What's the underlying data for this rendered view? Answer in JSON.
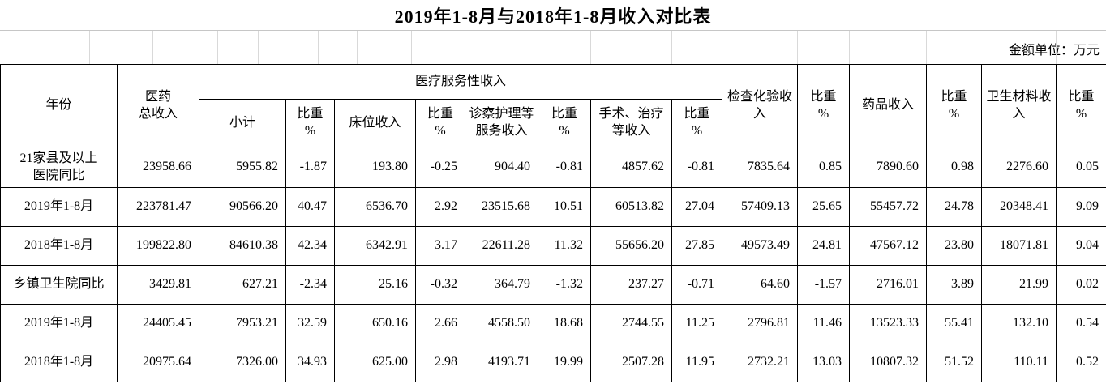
{
  "title": "2019年1-8月与2018年1-8月收入对比表",
  "unit_note": "金额单位：万元",
  "table": {
    "header": {
      "year": "年份",
      "total_medical_revenue": "医药\n总收入",
      "medical_service_group": "医疗服务性收入",
      "subtotal": "小计",
      "proportion_pct": "比重\n%",
      "bed_revenue": "床位收入",
      "exam_nursing_service_revenue": "诊察护理等\n服务收入",
      "surgery_treatment_revenue": "手术、治疗\n等收入",
      "inspection_lab_revenue": "检查化验收\n入",
      "drug_revenue": "药品收入",
      "sanitary_material_revenue": "卫生材料收\n入"
    },
    "rows": [
      {
        "label": "21家县及以上\n医院同比",
        "values": [
          "23958.66",
          "5955.82",
          "-1.87",
          "193.80",
          "-0.25",
          "904.40",
          "-0.81",
          "4857.62",
          "-0.81",
          "7835.64",
          "0.85",
          "7890.60",
          "0.98",
          "2276.60",
          "0.05"
        ]
      },
      {
        "label": "2019年1-8月",
        "values": [
          "223781.47",
          "90566.20",
          "40.47",
          "6536.70",
          "2.92",
          "23515.68",
          "10.51",
          "60513.82",
          "27.04",
          "57409.13",
          "25.65",
          "55457.72",
          "24.78",
          "20348.41",
          "9.09"
        ]
      },
      {
        "label": "2018年1-8月",
        "values": [
          "199822.80",
          "84610.38",
          "42.34",
          "6342.91",
          "3.17",
          "22611.28",
          "11.32",
          "55656.20",
          "27.85",
          "49573.49",
          "24.81",
          "47567.12",
          "23.80",
          "18071.81",
          "9.04"
        ]
      },
      {
        "label": "乡镇卫生院同比",
        "values": [
          "3429.81",
          "627.21",
          "-2.34",
          "25.16",
          "-0.32",
          "364.79",
          "-1.32",
          "237.27",
          "-0.71",
          "64.60",
          "-1.57",
          "2716.01",
          "3.89",
          "21.99",
          "0.02"
        ]
      },
      {
        "label": "2019年1-8月",
        "values": [
          "24405.45",
          "7953.21",
          "32.59",
          "650.16",
          "2.66",
          "4558.50",
          "18.68",
          "2744.55",
          "11.25",
          "2796.81",
          "11.46",
          "13523.33",
          "55.41",
          "132.10",
          "0.54"
        ]
      },
      {
        "label": "2018年1-8月",
        "values": [
          "20975.64",
          "7326.00",
          "34.93",
          "625.00",
          "2.98",
          "4193.71",
          "19.99",
          "2507.28",
          "11.95",
          "2732.21",
          "13.03",
          "10807.32",
          "51.52",
          "110.11",
          "0.52"
        ]
      }
    ]
  }
}
